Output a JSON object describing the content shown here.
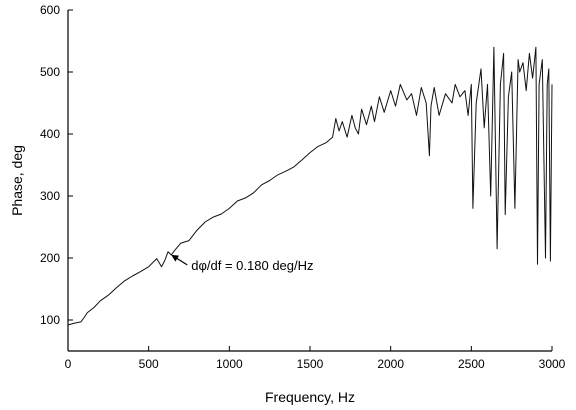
{
  "chart_data": {
    "type": "line",
    "title": "",
    "xlabel": "Frequency, Hz",
    "ylabel": "Phase, deg",
    "xlim": [
      0,
      3000
    ],
    "ylim": [
      50,
      600
    ],
    "xticks": [
      0,
      500,
      1000,
      1500,
      2000,
      2500,
      3000
    ],
    "yticks": [
      100,
      200,
      300,
      400,
      500,
      600
    ],
    "grid": false,
    "colors": {
      "line": "#111111",
      "axis": "#000000"
    },
    "annotation": {
      "text": "dφ/df = 0.180 deg/Hz",
      "arrow_to": [
        640,
        205
      ]
    },
    "series": [
      {
        "x": [
          0,
          40,
          80,
          100,
          120,
          160,
          200,
          250,
          300,
          350,
          400,
          450,
          500,
          550,
          580,
          600,
          620,
          640,
          660,
          700,
          750,
          800,
          850,
          900,
          950,
          1000,
          1050,
          1100,
          1150,
          1200,
          1250,
          1300,
          1350,
          1400,
          1450,
          1500,
          1550,
          1600,
          1640,
          1660,
          1680,
          1700,
          1730,
          1760,
          1780,
          1800,
          1820,
          1850,
          1880,
          1900,
          1930,
          1960,
          2000,
          2030,
          2060,
          2100,
          2130,
          2160,
          2190,
          2220,
          2240,
          2250,
          2270,
          2300,
          2340,
          2380,
          2400,
          2430,
          2460,
          2480,
          2500,
          2510,
          2530,
          2560,
          2580,
          2600,
          2620,
          2640,
          2660,
          2680,
          2700,
          2710,
          2730,
          2750,
          2770,
          2790,
          2800,
          2820,
          2840,
          2860,
          2880,
          2900,
          2910,
          2920,
          2940,
          2960,
          2970,
          2980,
          2990,
          3000
        ],
        "values": [
          92,
          95,
          97,
          104,
          112,
          120,
          131,
          140,
          152,
          163,
          171,
          178,
          186,
          199,
          186,
          196,
          210,
          205,
          212,
          224,
          228,
          245,
          258,
          266,
          271,
          280,
          292,
          297,
          305,
          318,
          325,
          334,
          340,
          347,
          358,
          370,
          380,
          386,
          395,
          425,
          405,
          420,
          395,
          430,
          410,
          400,
          440,
          415,
          445,
          420,
          460,
          435,
          470,
          445,
          480,
          455,
          465,
          430,
          475,
          450,
          365,
          445,
          475,
          430,
          465,
          450,
          480,
          460,
          470,
          430,
          480,
          280,
          450,
          505,
          410,
          480,
          300,
          540,
          215,
          480,
          530,
          270,
          460,
          500,
          280,
          520,
          500,
          515,
          470,
          530,
          490,
          540,
          190,
          480,
          520,
          200,
          480,
          505,
          195,
          480
        ]
      }
    ]
  }
}
